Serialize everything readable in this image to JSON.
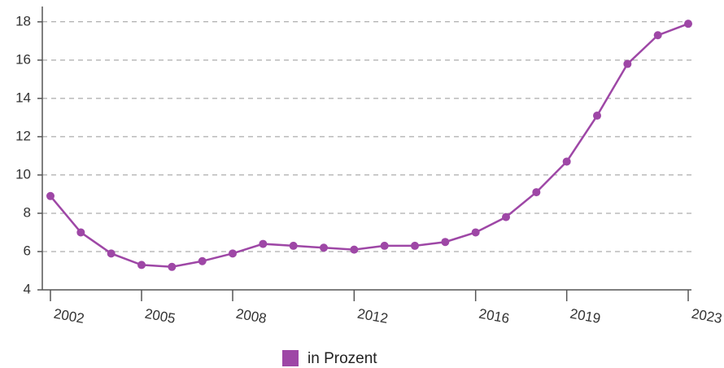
{
  "chart_data": {
    "type": "line",
    "categories": [
      "2002",
      null,
      null,
      "2005",
      null,
      null,
      "2008",
      null,
      null,
      null,
      "2012",
      null,
      null,
      null,
      "2016",
      null,
      null,
      "2019",
      null,
      null,
      null,
      "2023"
    ],
    "series": [
      {
        "name": "in Prozent",
        "color": "#9e47a6",
        "values": [
          8.9,
          7.0,
          5.9,
          5.3,
          5.2,
          5.5,
          5.9,
          6.4,
          6.3,
          6.2,
          6.1,
          6.3,
          6.3,
          6.5,
          7.0,
          7.8,
          9.1,
          10.7,
          13.1,
          15.8,
          17.3,
          17.9
        ]
      }
    ],
    "ylim": [
      4,
      18.8
    ],
    "yticks": [
      4,
      6,
      8,
      10,
      12,
      14,
      16,
      18
    ],
    "grid": true,
    "legend": "bottom"
  }
}
